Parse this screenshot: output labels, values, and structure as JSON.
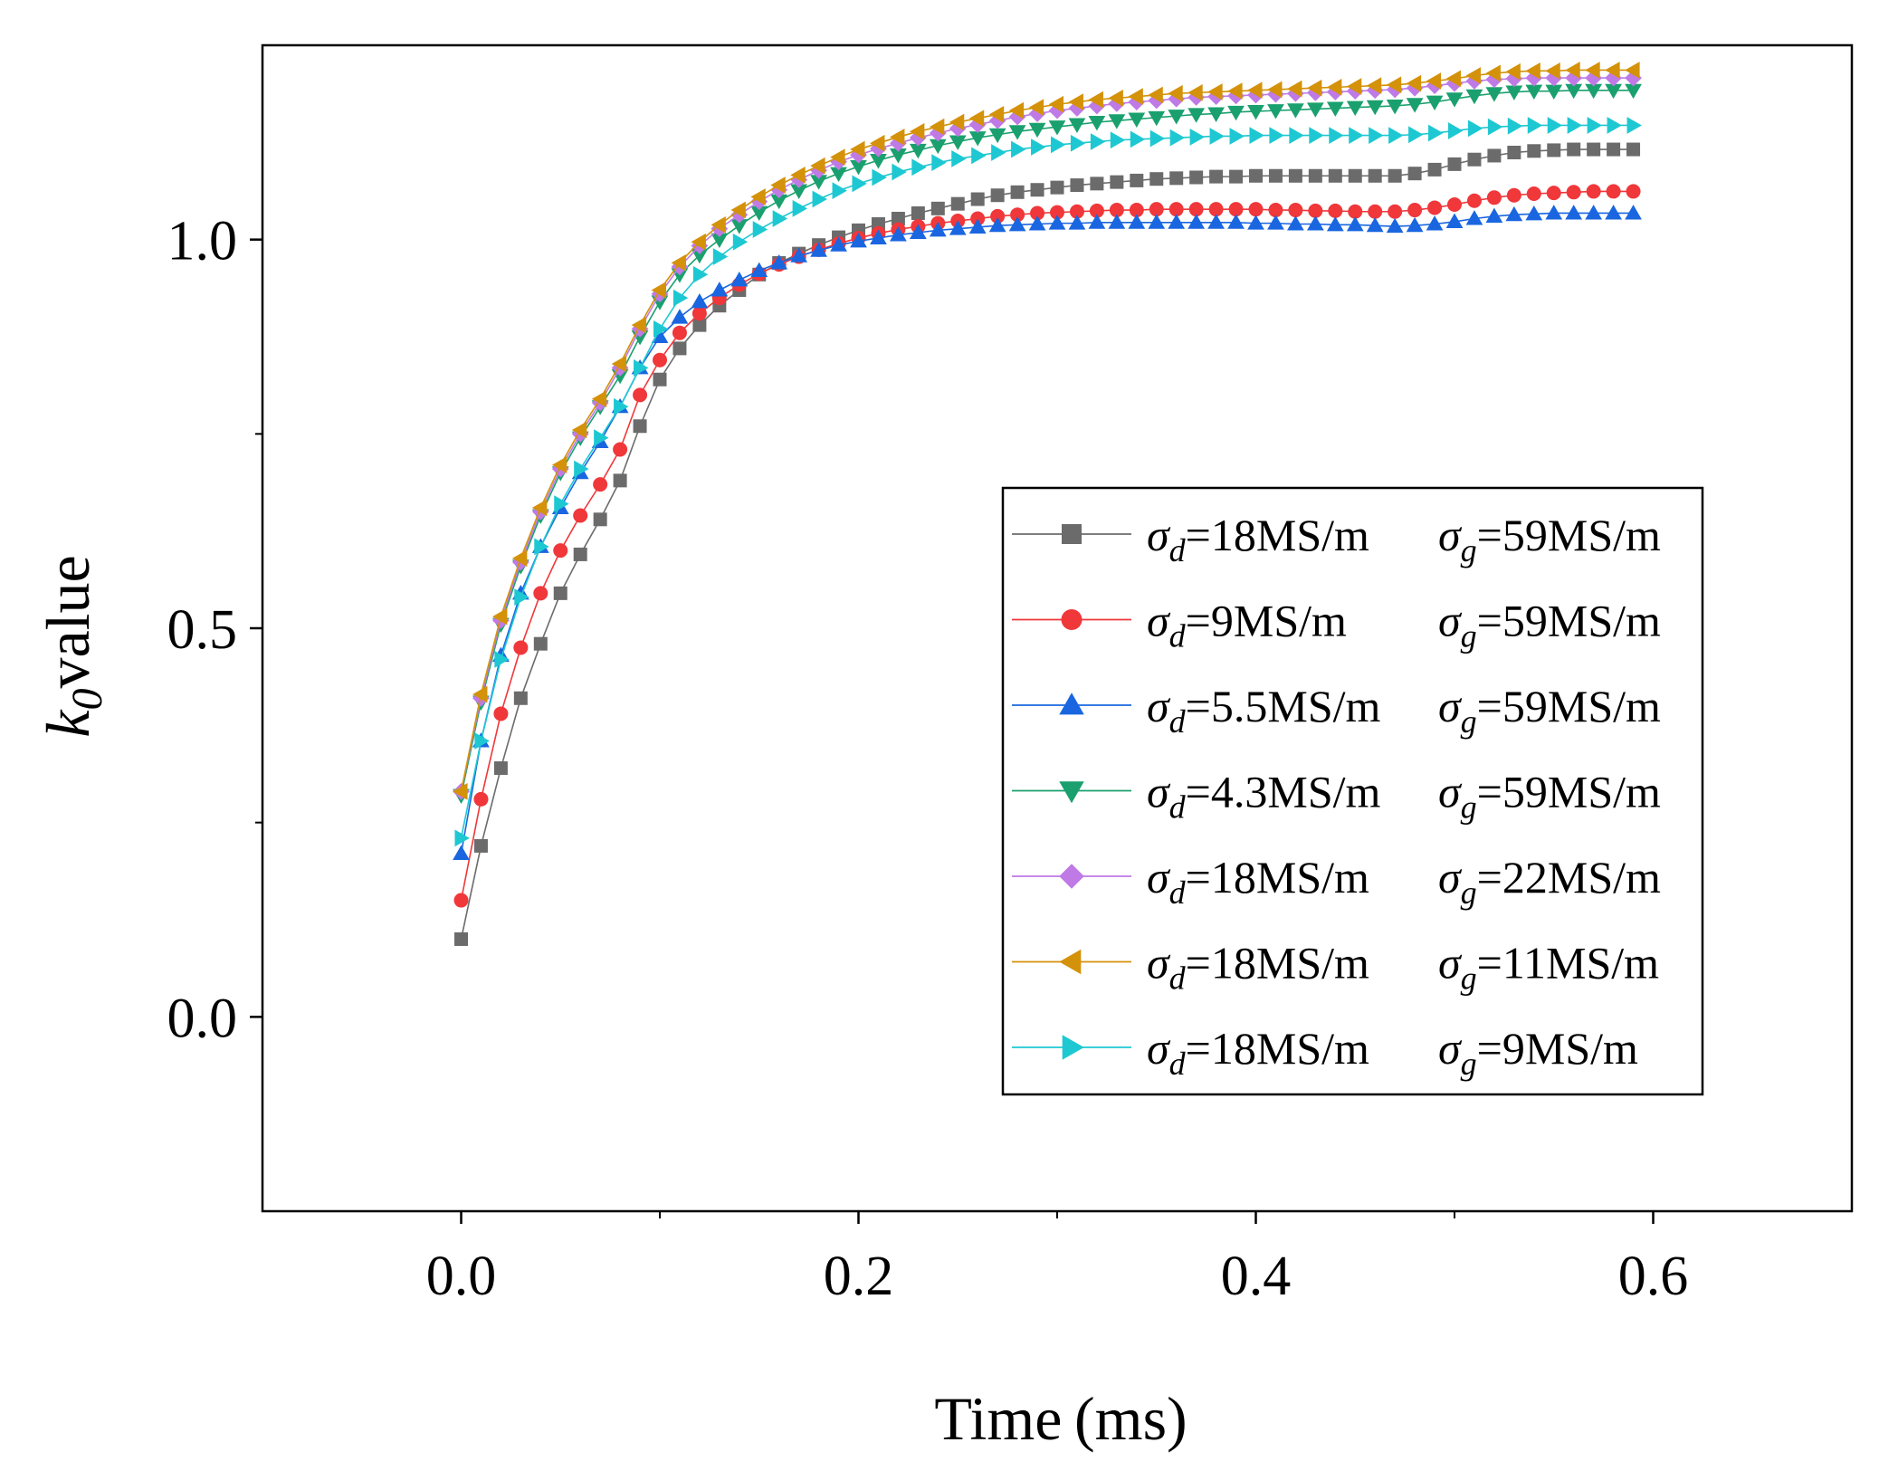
{
  "chart_data": {
    "type": "line",
    "title": "",
    "xlabel": "Time (ms)",
    "ylabel_main": "k",
    "ylabel_sub": "0",
    "ylabel_rest": "value",
    "xlim": [
      -0.1,
      0.7
    ],
    "ylim": [
      -0.25,
      1.25
    ],
    "xticks": [
      0.0,
      0.2,
      0.4,
      0.6
    ],
    "xtick_labels": [
      "0.0",
      "0.2",
      "0.4",
      "0.6"
    ],
    "xminor": [
      0.1,
      0.3,
      0.5
    ],
    "yticks": [
      0.0,
      0.5,
      1.0
    ],
    "ytick_labels": [
      "0.0",
      "0.5",
      "1.0"
    ],
    "yminor": [
      0.25,
      0.75
    ],
    "grid": false,
    "legend_position": "right-middle",
    "x": [
      0.0,
      0.01,
      0.02,
      0.03,
      0.04,
      0.05,
      0.06,
      0.07,
      0.08,
      0.09,
      0.1,
      0.11,
      0.12,
      0.13,
      0.14,
      0.15,
      0.16,
      0.17,
      0.18,
      0.19,
      0.2,
      0.21,
      0.22,
      0.23,
      0.24,
      0.25,
      0.26,
      0.27,
      0.28,
      0.29,
      0.3,
      0.31,
      0.32,
      0.33,
      0.34,
      0.35,
      0.36,
      0.37,
      0.38,
      0.39,
      0.4,
      0.41,
      0.42,
      0.43,
      0.44,
      0.45,
      0.46,
      0.47,
      0.48,
      0.49,
      0.5,
      0.51,
      0.52,
      0.53,
      0.54,
      0.55,
      0.56,
      0.57,
      0.58,
      0.59
    ],
    "series": [
      {
        "name": "sd18_sg59",
        "legend": {
          "sig1": "σ",
          "sub1": "d",
          "mid": "=18MS/m",
          "sig2": "σ",
          "sub2": "g",
          "end": "=59MS/m"
        },
        "color": "#6b6b6b",
        "marker": "square",
        "values": [
          0.1,
          0.22,
          0.32,
          0.41,
          0.48,
          0.545,
          0.595,
          0.64,
          0.69,
          0.76,
          0.82,
          0.86,
          0.89,
          0.915,
          0.935,
          0.955,
          0.97,
          0.982,
          0.993,
          1.003,
          1.012,
          1.02,
          1.027,
          1.034,
          1.04,
          1.046,
          1.052,
          1.057,
          1.061,
          1.064,
          1.067,
          1.07,
          1.072,
          1.074,
          1.076,
          1.078,
          1.079,
          1.08,
          1.081,
          1.081,
          1.082,
          1.082,
          1.082,
          1.082,
          1.082,
          1.082,
          1.082,
          1.082,
          1.085,
          1.09,
          1.097,
          1.103,
          1.108,
          1.112,
          1.114,
          1.115,
          1.116,
          1.116,
          1.116,
          1.116
        ]
      },
      {
        "name": "sd9_sg59",
        "legend": {
          "sig1": "σ",
          "sub1": "d",
          "mid": "=9MS/m",
          "sig2": "σ",
          "sub2": "g",
          "end": "=59MS/m"
        },
        "color": "#f0373a",
        "marker": "circle",
        "values": [
          0.15,
          0.28,
          0.39,
          0.475,
          0.545,
          0.6,
          0.645,
          0.685,
          0.73,
          0.8,
          0.845,
          0.88,
          0.905,
          0.925,
          0.942,
          0.956,
          0.968,
          0.978,
          0.987,
          0.995,
          1.002,
          1.008,
          1.013,
          1.017,
          1.021,
          1.024,
          1.027,
          1.03,
          1.032,
          1.034,
          1.035,
          1.036,
          1.037,
          1.038,
          1.038,
          1.039,
          1.039,
          1.039,
          1.039,
          1.039,
          1.039,
          1.038,
          1.038,
          1.037,
          1.037,
          1.036,
          1.036,
          1.036,
          1.038,
          1.041,
          1.045,
          1.05,
          1.054,
          1.057,
          1.059,
          1.06,
          1.061,
          1.062,
          1.062,
          1.062
        ]
      },
      {
        "name": "sd55_sg59",
        "legend": {
          "sig1": "σ",
          "sub1": "d",
          "mid": "=5.5MS/m",
          "sig2": "σ",
          "sub2": "g",
          "end": "=59MS/m"
        },
        "color": "#1a66e0",
        "marker": "triangle-up",
        "values": [
          0.21,
          0.355,
          0.465,
          0.545,
          0.605,
          0.655,
          0.7,
          0.74,
          0.785,
          0.835,
          0.875,
          0.9,
          0.92,
          0.935,
          0.948,
          0.96,
          0.97,
          0.979,
          0.986,
          0.993,
          0.998,
          1.002,
          1.006,
          1.009,
          1.012,
          1.014,
          1.016,
          1.018,
          1.019,
          1.02,
          1.021,
          1.021,
          1.022,
          1.022,
          1.022,
          1.022,
          1.022,
          1.022,
          1.022,
          1.022,
          1.021,
          1.021,
          1.02,
          1.02,
          1.019,
          1.019,
          1.018,
          1.017,
          1.018,
          1.02,
          1.023,
          1.027,
          1.03,
          1.032,
          1.033,
          1.034,
          1.034,
          1.034,
          1.034,
          1.034
        ]
      },
      {
        "name": "sd43_sg59",
        "legend": {
          "sig1": "σ",
          "sub1": "d",
          "mid": "=4.3MS/m",
          "sig2": "σ",
          "sub2": "g",
          "end": "=59MS/m"
        },
        "color": "#1aa06e",
        "marker": "triangle-down",
        "values": [
          0.285,
          0.405,
          0.505,
          0.58,
          0.645,
          0.7,
          0.745,
          0.785,
          0.825,
          0.875,
          0.92,
          0.955,
          0.98,
          1.0,
          1.018,
          1.035,
          1.05,
          1.063,
          1.075,
          1.085,
          1.094,
          1.102,
          1.109,
          1.115,
          1.121,
          1.126,
          1.131,
          1.135,
          1.139,
          1.142,
          1.145,
          1.148,
          1.151,
          1.153,
          1.155,
          1.157,
          1.159,
          1.161,
          1.162,
          1.164,
          1.165,
          1.166,
          1.167,
          1.168,
          1.169,
          1.17,
          1.171,
          1.172,
          1.174,
          1.177,
          1.181,
          1.185,
          1.188,
          1.19,
          1.191,
          1.191,
          1.192,
          1.192,
          1.192,
          1.192
        ]
      },
      {
        "name": "sd18_sg22",
        "legend": {
          "sig1": "σ",
          "sub1": "d",
          "mid": "=18MS/m",
          "sig2": "σ",
          "sub2": "g",
          "end": "=22MS/m"
        },
        "color": "#bf7ae6",
        "marker": "diamond",
        "values": [
          0.29,
          0.41,
          0.51,
          0.585,
          0.65,
          0.705,
          0.75,
          0.79,
          0.835,
          0.885,
          0.93,
          0.965,
          0.992,
          1.014,
          1.032,
          1.049,
          1.064,
          1.077,
          1.089,
          1.1,
          1.109,
          1.117,
          1.124,
          1.131,
          1.137,
          1.143,
          1.148,
          1.153,
          1.158,
          1.162,
          1.166,
          1.169,
          1.172,
          1.175,
          1.177,
          1.179,
          1.181,
          1.183,
          1.184,
          1.185,
          1.186,
          1.187,
          1.188,
          1.189,
          1.19,
          1.191,
          1.192,
          1.193,
          1.195,
          1.198,
          1.201,
          1.204,
          1.206,
          1.207,
          1.208,
          1.208,
          1.208,
          1.208,
          1.208,
          1.208
        ]
      },
      {
        "name": "sd18_sg11",
        "legend": {
          "sig1": "σ",
          "sub1": "d",
          "mid": "=18MS/m",
          "sig2": "σ",
          "sub2": "g",
          "end": "=11MS/m"
        },
        "color": "#d4920a",
        "marker": "triangle-left",
        "values": [
          0.29,
          0.415,
          0.515,
          0.59,
          0.655,
          0.71,
          0.755,
          0.795,
          0.84,
          0.89,
          0.935,
          0.97,
          0.997,
          1.019,
          1.038,
          1.055,
          1.07,
          1.083,
          1.095,
          1.106,
          1.116,
          1.124,
          1.132,
          1.139,
          1.145,
          1.151,
          1.156,
          1.161,
          1.166,
          1.17,
          1.174,
          1.177,
          1.18,
          1.182,
          1.184,
          1.186,
          1.188,
          1.189,
          1.19,
          1.191,
          1.192,
          1.193,
          1.194,
          1.195,
          1.196,
          1.197,
          1.198,
          1.199,
          1.201,
          1.204,
          1.207,
          1.211,
          1.214,
          1.216,
          1.217,
          1.217,
          1.218,
          1.218,
          1.218,
          1.218
        ]
      },
      {
        "name": "sd18_sg9",
        "legend": {
          "sig1": "σ",
          "sub1": "d",
          "mid": "=18MS/m",
          "sig2": "σ",
          "sub2": "g",
          "end": "=9MS/m"
        },
        "color": "#1ec8d2",
        "marker": "triangle-right",
        "values": [
          0.23,
          0.355,
          0.46,
          0.54,
          0.605,
          0.66,
          0.705,
          0.745,
          0.785,
          0.835,
          0.885,
          0.925,
          0.955,
          0.978,
          0.997,
          1.013,
          1.027,
          1.04,
          1.052,
          1.063,
          1.072,
          1.08,
          1.087,
          1.093,
          1.099,
          1.104,
          1.108,
          1.112,
          1.116,
          1.119,
          1.122,
          1.124,
          1.126,
          1.128,
          1.129,
          1.13,
          1.131,
          1.132,
          1.133,
          1.133,
          1.134,
          1.134,
          1.134,
          1.134,
          1.134,
          1.134,
          1.134,
          1.134,
          1.135,
          1.137,
          1.14,
          1.143,
          1.145,
          1.146,
          1.147,
          1.147,
          1.147,
          1.147,
          1.147,
          1.147
        ]
      }
    ]
  }
}
